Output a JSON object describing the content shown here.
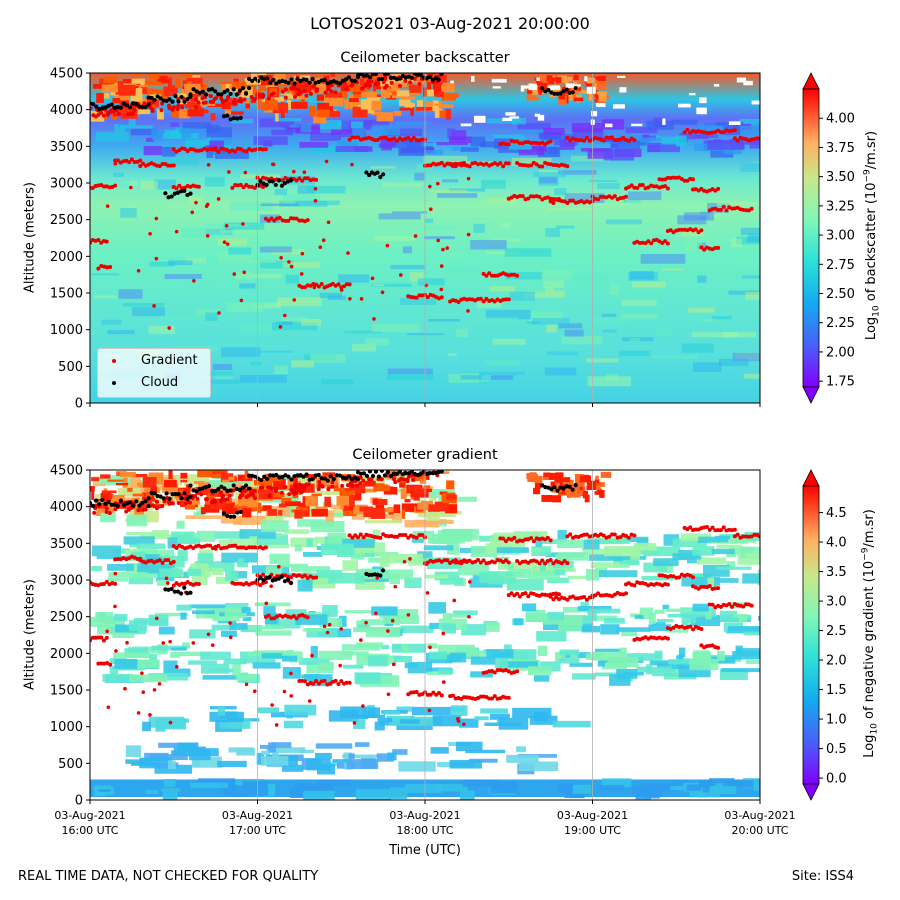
{
  "figure": {
    "suptitle": "LOTOS2021 03-Aug-2021 20:00:00",
    "footer_left": "REAL TIME DATA, NOT CHECKED FOR QUALITY",
    "footer_right": "Site: ISS4"
  },
  "chart_data": [
    {
      "type": "heatmap",
      "title": "Ceilometer backscatter",
      "ylabel": "Altitude (meters)",
      "xlabel": "",
      "x_range": [
        "03-Aug-2021 16:00 UTC",
        "03-Aug-2021 20:00 UTC"
      ],
      "ylim": [
        0,
        4500
      ],
      "yticks": [
        0,
        500,
        1000,
        1500,
        2000,
        2500,
        3000,
        3500,
        4000,
        4500
      ],
      "colormap": "rainbow",
      "colorbar": {
        "label_prefix": "Log",
        "label_sub": "10",
        "label_mid": " of backscatter (10",
        "label_sup": "−9",
        "label_suffix": "/m.sr)",
        "range": [
          1.7,
          4.25
        ],
        "ticks": [
          "1.75",
          "2.00",
          "2.25",
          "2.50",
          "2.75",
          "3.00",
          "3.25",
          "3.50",
          "3.75",
          "4.00"
        ],
        "extend": "both"
      },
      "legend": {
        "placement": "lower-left",
        "entries": [
          {
            "name": "Gradient",
            "color": "#ee0000"
          },
          {
            "name": "Cloud",
            "color": "#000000"
          }
        ]
      },
      "grid": "vertical lines at hour ticks"
    },
    {
      "type": "heatmap",
      "title": "Ceilometer gradient",
      "ylabel": "Altitude (meters)",
      "xlabel": "Time (UTC)",
      "x_range": [
        "03-Aug-2021 16:00 UTC",
        "03-Aug-2021 20:00 UTC"
      ],
      "xticks": [
        [
          "03-Aug-2021",
          "16:00 UTC"
        ],
        [
          "03-Aug-2021",
          "17:00 UTC"
        ],
        [
          "03-Aug-2021",
          "18:00 UTC"
        ],
        [
          "03-Aug-2021",
          "19:00 UTC"
        ],
        [
          "03-Aug-2021",
          "20:00 UTC"
        ]
      ],
      "ylim": [
        0,
        4500
      ],
      "yticks": [
        0,
        500,
        1000,
        1500,
        2000,
        2500,
        3000,
        3500,
        4000,
        4500
      ],
      "colormap": "rainbow",
      "colorbar": {
        "label_prefix": "Log",
        "label_sub": "10",
        "label_mid": " of negative gradient (10",
        "label_sup": "−9",
        "label_suffix": "/m.sr)",
        "range": [
          -0.1,
          4.95
        ],
        "ticks": [
          "0.0",
          "0.5",
          "1.0",
          "1.5",
          "2.0",
          "2.5",
          "3.0",
          "3.5",
          "4.0",
          "4.5"
        ],
        "extend": "both"
      },
      "grid": "vertical lines at hour ticks"
    }
  ],
  "gradient_points": {
    "description_units": "x in hours UTC, y in meters",
    "segments": [
      {
        "x0": 16.0,
        "x1": 16.15,
        "y": 2950
      },
      {
        "x0": 16.15,
        "x1": 16.3,
        "y": 3300
      },
      {
        "x0": 16.3,
        "x1": 16.5,
        "y": 3250
      },
      {
        "x0": 16.5,
        "x1": 16.75,
        "y": 3450
      },
      {
        "x0": 16.75,
        "x1": 17.05,
        "y": 3450
      },
      {
        "x0": 16.5,
        "x1": 16.65,
        "y": 2950
      },
      {
        "x0": 16.85,
        "x1": 17.05,
        "y": 2950
      },
      {
        "x0": 17.0,
        "x1": 17.35,
        "y": 3050
      },
      {
        "x0": 17.05,
        "x1": 17.3,
        "y": 2500
      },
      {
        "x0": 17.25,
        "x1": 17.55,
        "y": 1600
      },
      {
        "x0": 17.55,
        "x1": 18.0,
        "y": 3600
      },
      {
        "x0": 18.0,
        "x1": 18.25,
        "y": 3250
      },
      {
        "x0": 18.15,
        "x1": 18.5,
        "y": 3250
      },
      {
        "x0": 17.9,
        "x1": 18.1,
        "y": 1450
      },
      {
        "x0": 18.15,
        "x1": 18.5,
        "y": 1400
      },
      {
        "x0": 18.35,
        "x1": 18.55,
        "y": 1750
      },
      {
        "x0": 18.45,
        "x1": 18.75,
        "y": 3550
      },
      {
        "x0": 18.5,
        "x1": 18.8,
        "y": 2800
      },
      {
        "x0": 18.75,
        "x1": 19.0,
        "y": 2750
      },
      {
        "x0": 18.55,
        "x1": 18.85,
        "y": 3250
      },
      {
        "x0": 18.85,
        "x1": 19.25,
        "y": 3600
      },
      {
        "x0": 19.0,
        "x1": 19.2,
        "y": 2800
      },
      {
        "x0": 19.2,
        "x1": 19.45,
        "y": 2950
      },
      {
        "x0": 19.4,
        "x1": 19.6,
        "y": 3050
      },
      {
        "x0": 19.25,
        "x1": 19.45,
        "y": 2200
      },
      {
        "x0": 19.45,
        "x1": 19.65,
        "y": 2350
      },
      {
        "x0": 19.6,
        "x1": 19.75,
        "y": 2900
      },
      {
        "x0": 19.7,
        "x1": 19.95,
        "y": 2650
      },
      {
        "x0": 19.55,
        "x1": 19.85,
        "y": 3700
      },
      {
        "x0": 19.85,
        "x1": 20.0,
        "y": 3600
      },
      {
        "x0": 19.65,
        "x1": 19.75,
        "y": 2100
      },
      {
        "x0": 16.0,
        "x1": 16.1,
        "y": 2200
      },
      {
        "x0": 16.05,
        "x1": 16.12,
        "y": 1850
      }
    ],
    "top_band": {
      "x0": 16.0,
      "x1": 18.1,
      "y_from": 3950,
      "y_to": 4450
    }
  },
  "cloud_points": {
    "description_units": "x in hours UTC, y in meters",
    "segments": [
      {
        "x0": 16.0,
        "x1": 16.35,
        "y": 4050
      },
      {
        "x0": 16.35,
        "x1": 16.6,
        "y": 4150
      },
      {
        "x0": 16.6,
        "x1": 16.95,
        "y": 4250
      },
      {
        "x0": 16.95,
        "x1": 17.6,
        "y": 4400
      },
      {
        "x0": 17.6,
        "x1": 18.1,
        "y": 4450
      },
      {
        "x0": 16.45,
        "x1": 16.6,
        "y": 2850
      },
      {
        "x0": 16.8,
        "x1": 16.9,
        "y": 3900
      },
      {
        "x0": 17.65,
        "x1": 17.75,
        "y": 3100
      },
      {
        "x0": 18.7,
        "x1": 18.9,
        "y": 4250
      },
      {
        "x0": 17.0,
        "x1": 17.2,
        "y": 3000
      }
    ]
  }
}
